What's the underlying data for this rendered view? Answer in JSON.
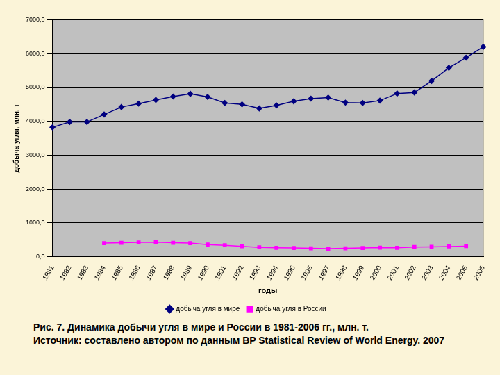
{
  "chart_data": {
    "type": "line",
    "title": "Рис. 7. Динамика добычи угля в мире и России в 1981-2006 гг., млн. т.",
    "source": "Источник: составлено автором по данным BP Statistical Review of World Energy. 2007",
    "x_label": "годы",
    "y_label": "добыча угля, млн. т",
    "categories": [
      "1981",
      "1982",
      "1983",
      "1984",
      "1985",
      "1986",
      "1987",
      "1988",
      "1989",
      "1990",
      "1991",
      "1992",
      "1993",
      "1994",
      "1995",
      "1996",
      "1997",
      "1998",
      "1999",
      "2000",
      "2001",
      "2002",
      "2003",
      "2004",
      "2005",
      "2006"
    ],
    "series": [
      {
        "name": "добыча угля в мире",
        "color": "#000080",
        "marker": "diamond",
        "values": [
          3820,
          3980,
          3980,
          4200,
          4420,
          4520,
          4630,
          4730,
          4810,
          4720,
          4540,
          4500,
          4380,
          4470,
          4590,
          4670,
          4700,
          4550,
          4540,
          4610,
          4820,
          4850,
          5190,
          5580,
          5880,
          6200
        ]
      },
      {
        "name": "добыча угля в России",
        "color": "#ff00ff",
        "marker": "square",
        "values": [
          null,
          null,
          null,
          400,
          410,
          420,
          425,
          410,
          400,
          355,
          335,
          305,
          275,
          260,
          255,
          245,
          235,
          245,
          255,
          265,
          260,
          285,
          290,
          300,
          310,
          null
        ]
      }
    ],
    "ylim": [
      0,
      7000
    ],
    "yticks": [
      {
        "value": 0,
        "label": "0,0"
      },
      {
        "value": 1000,
        "label": "1000,0"
      },
      {
        "value": 2000,
        "label": "2000,0"
      },
      {
        "value": 3000,
        "label": "3000,0"
      },
      {
        "value": 4000,
        "label": "4000,0"
      },
      {
        "value": 5000,
        "label": "5000,0"
      },
      {
        "value": 6000,
        "label": "6000,0"
      },
      {
        "value": 7000,
        "label": "7000,0"
      }
    ],
    "grid": true,
    "legend": "bottom"
  }
}
